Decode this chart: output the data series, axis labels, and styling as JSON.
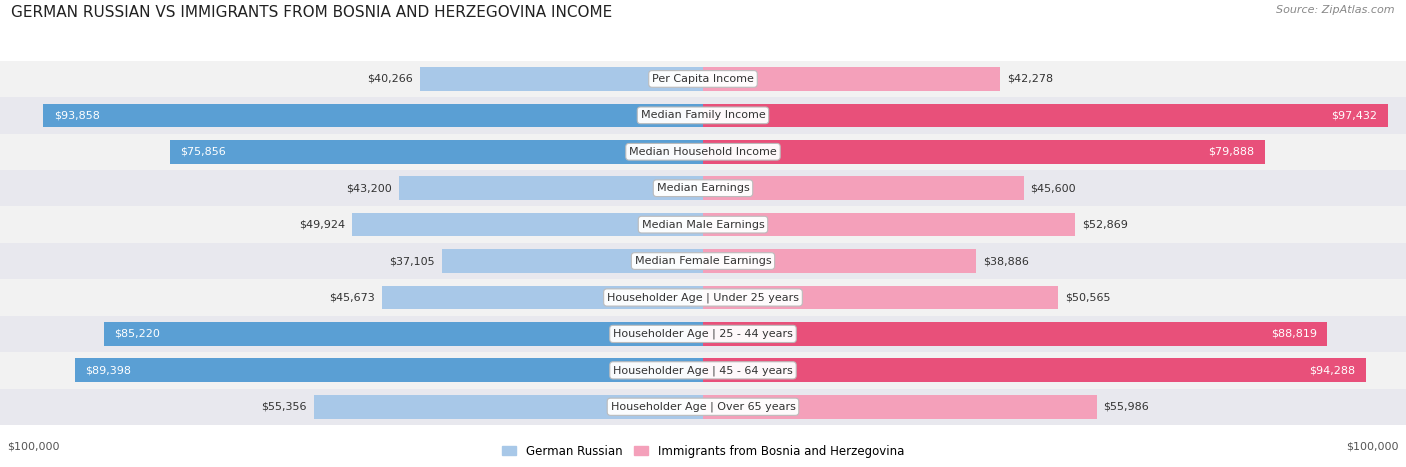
{
  "title": "GERMAN RUSSIAN VS IMMIGRANTS FROM BOSNIA AND HERZEGOVINA INCOME",
  "source": "Source: ZipAtlas.com",
  "categories": [
    "Per Capita Income",
    "Median Family Income",
    "Median Household Income",
    "Median Earnings",
    "Median Male Earnings",
    "Median Female Earnings",
    "Householder Age | Under 25 years",
    "Householder Age | 25 - 44 years",
    "Householder Age | 45 - 64 years",
    "Householder Age | Over 65 years"
  ],
  "left_values": [
    40266,
    93858,
    75856,
    43200,
    49924,
    37105,
    45673,
    85220,
    89398,
    55356
  ],
  "right_values": [
    42278,
    97432,
    79888,
    45600,
    52869,
    38886,
    50565,
    88819,
    94288,
    55986
  ],
  "left_labels": [
    "$40,266",
    "$93,858",
    "$75,856",
    "$43,200",
    "$49,924",
    "$37,105",
    "$45,673",
    "$85,220",
    "$89,398",
    "$55,356"
  ],
  "right_labels": [
    "$42,278",
    "$97,432",
    "$79,888",
    "$45,600",
    "$52,869",
    "$38,886",
    "$50,565",
    "$88,819",
    "$94,288",
    "$55,986"
  ],
  "max_value": 100000,
  "left_color_light": "#a8c8e8",
  "left_color_dark": "#5a9fd4",
  "right_color_light": "#f4a0ba",
  "right_color_dark": "#e8507a",
  "threshold_dark": 70000,
  "legend_left": "German Russian",
  "legend_right": "Immigrants from Bosnia and Herzegovina",
  "bg_row_even": "#f0f0f0",
  "bg_row_odd": "#e0e0e8",
  "title_fontsize": 11,
  "label_fontsize": 8,
  "category_fontsize": 8,
  "source_fontsize": 8,
  "axis_label": "$100,000",
  "bar_height": 0.65
}
